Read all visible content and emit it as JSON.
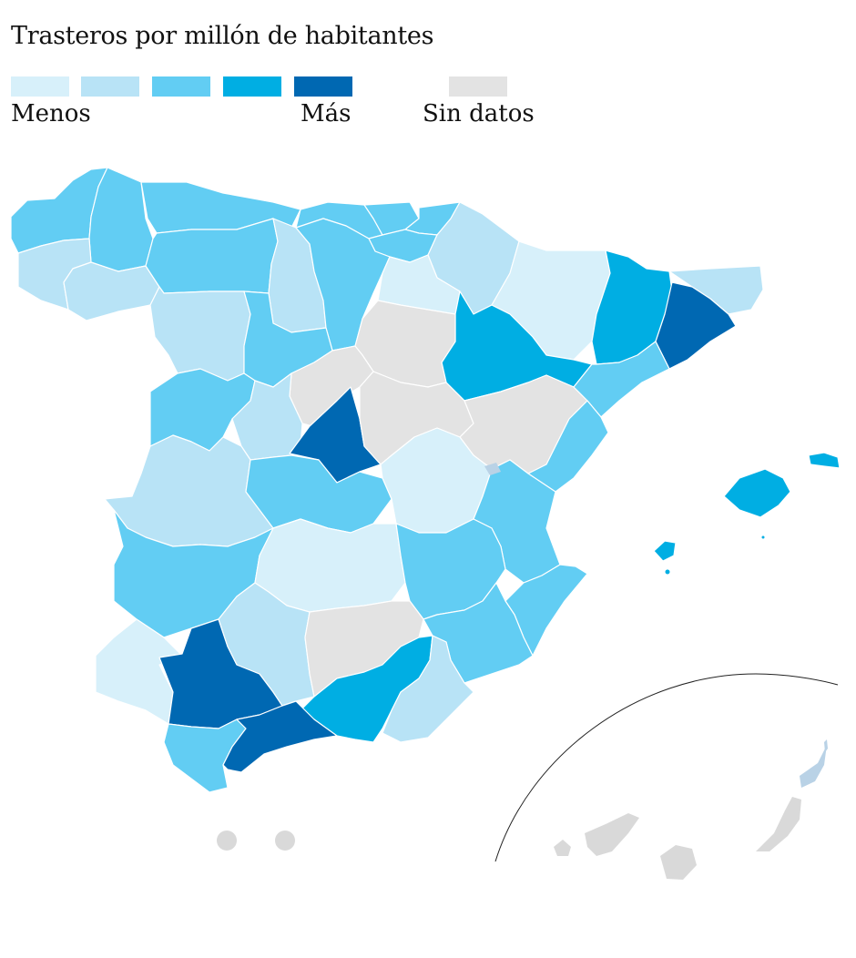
{
  "title": "Trasteros por millón de habitantes",
  "legend": {
    "low_label": "Menos",
    "high_label": "Más",
    "nodata_label": "Sin datos",
    "scale_colors": [
      "#d7f0fa",
      "#b8e3f6",
      "#62cdf3",
      "#00aee3",
      "#0068b2"
    ],
    "nodata_color": "#e3e3e3"
  },
  "colors": {
    "border": "#ffffff",
    "inset_line": "#222222",
    "canary_grey": "#d9d9d9",
    "canary_blue": "#b9d2e6"
  },
  "provinces": [
    {
      "name": "A Coruña",
      "level": 3
    },
    {
      "name": "Lugo",
      "level": 3
    },
    {
      "name": "Asturias",
      "level": 3
    },
    {
      "name": "Cantabria",
      "level": 3
    },
    {
      "name": "Bizkaia",
      "level": 3
    },
    {
      "name": "Gipuzkoa",
      "level": 3
    },
    {
      "name": "Álava",
      "level": 3
    },
    {
      "name": "Navarra",
      "level": 2
    },
    {
      "name": "Huesca",
      "level": 1
    },
    {
      "name": "Girona",
      "level": 2
    },
    {
      "name": "Pontevedra",
      "level": 2
    },
    {
      "name": "Ourense",
      "level": 2
    },
    {
      "name": "León",
      "level": 3
    },
    {
      "name": "Palencia",
      "level": 2
    },
    {
      "name": "Burgos",
      "level": 3
    },
    {
      "name": "La Rioja",
      "level": 1
    },
    {
      "name": "Zaragoza",
      "level": 4
    },
    {
      "name": "Lleida",
      "level": 4
    },
    {
      "name": "Barcelona",
      "level": 5
    },
    {
      "name": "Zamora",
      "level": 2
    },
    {
      "name": "Valladolid",
      "level": 3
    },
    {
      "name": "Soria",
      "level": null
    },
    {
      "name": "Segovia",
      "level": null
    },
    {
      "name": "Salamanca",
      "level": 3
    },
    {
      "name": "Ávila",
      "level": 2
    },
    {
      "name": "Madrid",
      "level": 5
    },
    {
      "name": "Guadalajara",
      "level": null
    },
    {
      "name": "Teruel",
      "level": null
    },
    {
      "name": "Tarragona",
      "level": 3
    },
    {
      "name": "Castellón",
      "level": 3
    },
    {
      "name": "Cáceres",
      "level": 2
    },
    {
      "name": "Toledo",
      "level": 3
    },
    {
      "name": "Cuenca",
      "level": 1
    },
    {
      "name": "Valencia",
      "level": 3
    },
    {
      "name": "Badajoz",
      "level": 3
    },
    {
      "name": "Ciudad Real",
      "level": 1
    },
    {
      "name": "Albacete",
      "level": 3
    },
    {
      "name": "Alicante",
      "level": 3
    },
    {
      "name": "Huelva",
      "level": 1
    },
    {
      "name": "Sevilla",
      "level": 5
    },
    {
      "name": "Córdoba",
      "level": 2
    },
    {
      "name": "Jaén",
      "level": null
    },
    {
      "name": "Granada",
      "level": 4
    },
    {
      "name": "Murcia",
      "level": 3
    },
    {
      "name": "Almería",
      "level": 2
    },
    {
      "name": "Cádiz",
      "level": 3
    },
    {
      "name": "Málaga",
      "level": 5
    },
    {
      "name": "Mallorca",
      "level": 4
    },
    {
      "name": "Menorca",
      "level": 4
    },
    {
      "name": "Ibiza",
      "level": 4
    }
  ]
}
